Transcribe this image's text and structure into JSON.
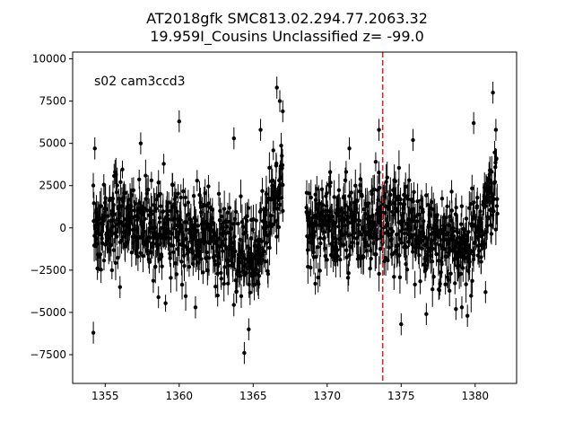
{
  "chart_data": {
    "type": "scatter",
    "title_line1": "AT2018gfk  SMC813.02.294.77.2063.32",
    "title_line2": "19.959I_Cousins Unclassified z= -99.0",
    "xlabel": "",
    "ylabel": "",
    "xlim": [
      1352.8,
      1382.8
    ],
    "ylim": [
      -9200,
      10400
    ],
    "x_ticks": [
      1355,
      1360,
      1365,
      1370,
      1375,
      1380
    ],
    "y_ticks": [
      -7500,
      -5000,
      -2500,
      0,
      2500,
      5000,
      7500,
      10000
    ],
    "annotation": "s02 cam3ccd3",
    "vline": {
      "x": 1373.75,
      "color": "#d62728",
      "style": "dashed"
    },
    "grid": false,
    "marker_color": "#000000",
    "segments": [
      {
        "x_start": 1354.2,
        "x_end": 1367.0,
        "n_points": 620,
        "trend": [
          [
            1354.2,
            0
          ],
          [
            1357.0,
            300
          ],
          [
            1360.0,
            0
          ],
          [
            1362.0,
            -300
          ],
          [
            1364.0,
            -1200
          ],
          [
            1365.2,
            -1800
          ],
          [
            1366.0,
            500
          ],
          [
            1367.0,
            3000
          ]
        ]
      },
      {
        "x_start": 1368.6,
        "x_end": 1381.5,
        "n_points": 640,
        "trend": [
          [
            1368.6,
            0
          ],
          [
            1371.0,
            100
          ],
          [
            1373.0,
            300
          ],
          [
            1375.0,
            200
          ],
          [
            1377.0,
            -200
          ],
          [
            1378.5,
            -900
          ],
          [
            1379.5,
            -1200
          ],
          [
            1380.5,
            600
          ],
          [
            1381.5,
            2500
          ]
        ]
      }
    ],
    "scatter_std": 1300,
    "err_range": [
      500,
      1100
    ],
    "outliers": [
      [
        1354.2,
        -6200
      ],
      [
        1354.3,
        4700
      ],
      [
        1357.4,
        5000
      ],
      [
        1360.0,
        6300
      ],
      [
        1361.1,
        -4700
      ],
      [
        1362.6,
        -4000
      ],
      [
        1363.7,
        5300
      ],
      [
        1364.4,
        -7400
      ],
      [
        1364.7,
        -6000
      ],
      [
        1365.5,
        5800
      ],
      [
        1366.6,
        8300
      ],
      [
        1366.8,
        7500
      ],
      [
        1367.0,
        6900
      ],
      [
        1373.5,
        5800
      ],
      [
        1375.8,
        5200
      ],
      [
        1379.1,
        -4700
      ],
      [
        1379.9,
        6200
      ],
      [
        1381.2,
        8000
      ],
      [
        1376.7,
        -5100
      ],
      [
        1370.2,
        3300
      ],
      [
        1380.7,
        -3800
      ],
      [
        1381.4,
        5800
      ],
      [
        1369.2,
        -3300
      ],
      [
        1375.0,
        -5700
      ],
      [
        1356.0,
        -3500
      ],
      [
        1358.6,
        -4100
      ],
      [
        1378.7,
        -4800
      ],
      [
        1367.0,
        1000
      ],
      [
        1368.6,
        1200
      ],
      [
        1371.5,
        4700
      ]
    ]
  }
}
